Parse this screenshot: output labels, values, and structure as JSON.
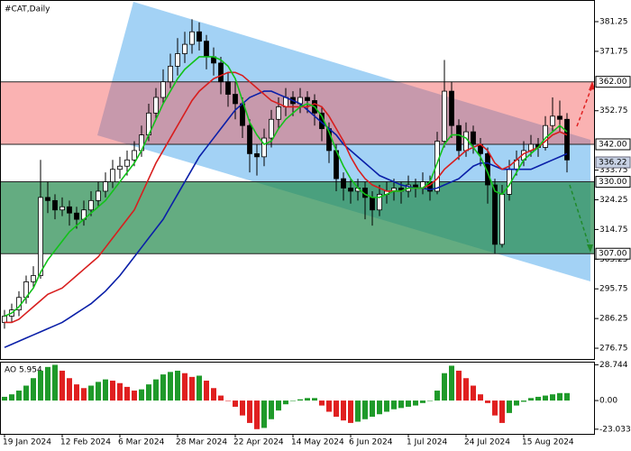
{
  "chart_data": {
    "type": "candlestick",
    "title": "#CAT,Daily",
    "categories": [
      "19 Jan 2024",
      null,
      null,
      null,
      null,
      null,
      null,
      null,
      "12 Feb 2024",
      null,
      null,
      null,
      null,
      null,
      null,
      null,
      "6 Mar 2024",
      null,
      null,
      null,
      null,
      null,
      null,
      null,
      "28 Mar 2024",
      null,
      null,
      null,
      null,
      null,
      null,
      null,
      "22 Apr 2024",
      null,
      null,
      null,
      null,
      null,
      null,
      null,
      "14 May 2024",
      null,
      null,
      null,
      null,
      null,
      null,
      null,
      "6 Jun 2024",
      null,
      null,
      null,
      null,
      null,
      null,
      null,
      "1 Jul 2024",
      null,
      null,
      null,
      null,
      null,
      null,
      null,
      "24 Jul 2024",
      null,
      null,
      null,
      null,
      null,
      null,
      null,
      "15 Aug 2024",
      null,
      null,
      null,
      null,
      null,
      null
    ],
    "ohlc": [
      [
        285,
        289,
        283,
        287
      ],
      [
        287,
        291,
        285,
        289
      ],
      [
        289,
        295,
        287,
        293
      ],
      [
        293,
        300,
        291,
        298
      ],
      [
        298,
        303,
        296,
        300
      ],
      [
        300,
        337,
        299,
        325
      ],
      [
        325,
        330,
        320,
        324
      ],
      [
        324,
        326,
        318,
        321
      ],
      [
        321,
        325,
        319,
        322
      ],
      [
        322,
        324,
        316,
        320
      ],
      [
        320,
        322,
        315,
        318
      ],
      [
        318,
        324,
        316,
        321
      ],
      [
        321,
        327,
        319,
        324
      ],
      [
        324,
        330,
        322,
        327
      ],
      [
        327,
        333,
        325,
        330
      ],
      [
        330,
        337,
        328,
        334
      ],
      [
        334,
        338,
        331,
        335
      ],
      [
        335,
        340,
        332,
        337
      ],
      [
        337,
        343,
        335,
        340
      ],
      [
        340,
        348,
        338,
        345
      ],
      [
        345,
        355,
        343,
        352
      ],
      [
        352,
        360,
        350,
        357
      ],
      [
        357,
        366,
        355,
        362
      ],
      [
        362,
        371,
        360,
        367
      ],
      [
        367,
        376,
        364,
        371
      ],
      [
        371,
        378,
        368,
        374
      ],
      [
        374,
        382,
        371,
        378
      ],
      [
        378,
        381,
        372,
        375
      ],
      [
        375,
        377,
        366,
        370
      ],
      [
        370,
        373,
        364,
        368
      ],
      [
        368,
        370,
        358,
        362
      ],
      [
        362,
        365,
        354,
        358
      ],
      [
        358,
        362,
        350,
        355
      ],
      [
        355,
        357,
        344,
        348
      ],
      [
        348,
        350,
        333,
        339
      ],
      [
        339,
        342,
        332,
        338
      ],
      [
        338,
        347,
        335,
        344
      ],
      [
        344,
        353,
        341,
        350
      ],
      [
        350,
        357,
        347,
        354
      ],
      [
        354,
        360,
        351,
        357
      ],
      [
        357,
        359,
        351,
        355
      ],
      [
        355,
        360,
        352,
        357
      ],
      [
        357,
        359,
        352,
        356
      ],
      [
        356,
        358,
        348,
        352
      ],
      [
        352,
        354,
        343,
        347
      ],
      [
        347,
        349,
        336,
        340
      ],
      [
        340,
        342,
        327,
        331
      ],
      [
        331,
        333,
        324,
        328
      ],
      [
        328,
        331,
        323,
        327
      ],
      [
        327,
        331,
        324,
        328
      ],
      [
        328,
        330,
        318,
        325
      ],
      [
        325,
        327,
        316,
        321
      ],
      [
        321,
        329,
        319,
        326
      ],
      [
        326,
        330,
        323,
        327
      ],
      [
        327,
        331,
        324,
        328
      ],
      [
        328,
        330,
        323,
        327
      ],
      [
        327,
        332,
        325,
        329
      ],
      [
        329,
        331,
        325,
        328
      ],
      [
        328,
        333,
        326,
        330
      ],
      [
        330,
        332,
        324,
        327
      ],
      [
        327,
        346,
        326,
        343
      ],
      [
        343,
        369,
        341,
        359
      ],
      [
        359,
        362,
        344,
        348
      ],
      [
        348,
        350,
        337,
        340
      ],
      [
        340,
        349,
        338,
        346
      ],
      [
        346,
        348,
        339,
        342
      ],
      [
        342,
        344,
        335,
        339
      ],
      [
        339,
        341,
        323,
        329
      ],
      [
        329,
        331,
        307,
        310
      ],
      [
        310,
        329,
        309,
        326
      ],
      [
        326,
        337,
        324,
        334
      ],
      [
        334,
        340,
        332,
        337
      ],
      [
        337,
        343,
        335,
        340
      ],
      [
        340,
        345,
        338,
        342
      ],
      [
        342,
        344,
        338,
        341
      ],
      [
        341,
        351,
        340,
        348
      ],
      [
        348,
        357,
        346,
        351
      ],
      [
        351,
        356,
        346,
        350
      ],
      [
        350,
        352,
        333,
        337
      ]
    ],
    "up_color": "#ffffff",
    "down_color": "#000000",
    "series": [
      {
        "color": "#0a1fa8",
        "values": [
          277,
          278,
          279,
          280,
          281,
          282,
          283,
          284,
          285,
          286.5,
          288,
          289.5,
          291,
          293,
          295,
          297.5,
          300,
          303,
          306,
          309,
          312,
          315,
          318,
          322,
          326,
          330,
          334,
          338,
          341,
          344,
          347,
          350,
          353,
          355,
          357,
          358,
          359,
          359,
          358,
          357,
          356,
          355,
          353,
          351,
          349,
          347,
          345,
          342,
          340,
          338,
          336,
          334,
          332,
          331,
          330,
          329,
          328.5,
          328,
          328,
          327.5,
          328,
          329,
          330,
          331,
          333,
          335,
          336,
          336,
          335,
          334,
          334,
          334,
          334,
          334,
          335,
          336,
          337,
          338,
          339
        ]
      },
      {
        "color": "#d81e1e",
        "values": [
          285,
          285,
          286,
          288,
          290,
          292,
          294,
          295,
          296,
          298,
          300,
          302,
          304,
          306,
          309,
          312,
          315,
          318,
          321,
          326,
          331,
          336,
          340,
          344,
          348,
          352,
          356,
          359,
          361,
          363,
          364,
          365,
          365,
          364,
          362,
          360,
          358,
          356,
          355,
          354,
          354,
          354,
          354,
          355,
          354,
          351,
          347,
          343,
          338,
          334,
          331,
          329,
          328,
          327,
          327,
          327,
          328,
          328,
          328,
          329,
          331,
          334,
          336,
          338,
          340,
          341,
          342,
          340,
          336,
          334,
          335,
          337,
          339,
          340,
          341,
          343,
          345,
          346,
          345
        ]
      },
      {
        "color": "#12c21a",
        "values": [
          287,
          288,
          290,
          293,
          296,
          301,
          305,
          308,
          311,
          314,
          316,
          318,
          320,
          322,
          324,
          327,
          330,
          333,
          336,
          340,
          345,
          350,
          355,
          359,
          363,
          366,
          368,
          370,
          370,
          370,
          369,
          367,
          363,
          356,
          349,
          345,
          342,
          343,
          347,
          350,
          352,
          354,
          355,
          354,
          351,
          346,
          340,
          335,
          331,
          328,
          326,
          325,
          325,
          326,
          327,
          327,
          328,
          328,
          328,
          330,
          336,
          342,
          345,
          345,
          344,
          341,
          338,
          333,
          327,
          326,
          329,
          333,
          337,
          339,
          341,
          344,
          346,
          348,
          346
        ]
      }
    ],
    "ylim": [
      273.3,
      387.6
    ],
    "yticks": [
      381.25,
      371.75,
      352.75,
      333.75,
      324.25,
      314.75,
      305.25,
      295.75,
      286.25,
      276.75
    ],
    "zones": [
      {
        "top": {
          "value": 362,
          "label": "362.00"
        },
        "bottom": {
          "value": 342,
          "label": "342.00"
        },
        "color": "rgba(245,85,85,0.45)"
      },
      {
        "top": {
          "value": 330,
          "label": "330.00"
        },
        "bottom": {
          "value": 307,
          "label": "307.00"
        },
        "color": "rgba(40,140,80,0.72)"
      }
    ],
    "last_price": {
      "value": 336.22,
      "label": "336.22"
    },
    "ao": {
      "title": "AO 5.954",
      "values": [
        3,
        5,
        8,
        12,
        18,
        24,
        27,
        28.7,
        24,
        18,
        13,
        10,
        12,
        15,
        17,
        16,
        14,
        11,
        8,
        9,
        13,
        17,
        21,
        23,
        24,
        22,
        19,
        20,
        16,
        10,
        4,
        0,
        -5,
        -12,
        -18,
        -23,
        -22,
        -15,
        -8,
        -3,
        0,
        1,
        2,
        2,
        -4,
        -9,
        -13,
        -16,
        -18,
        -17,
        -15,
        -13,
        -11,
        -9,
        -7,
        -6,
        -5,
        -4,
        -2,
        0,
        8,
        22,
        28,
        24,
        18,
        12,
        5,
        -2,
        -12,
        -18,
        -10,
        -4,
        -1,
        2,
        3,
        4,
        5,
        6,
        6
      ],
      "up_color": "#1f9a2a",
      "down_color": "#e02020",
      "ylim": [
        -27.5,
        30.5
      ],
      "yticks": [
        28.744,
        {
          "value": 0,
          "label": "0.00"
        },
        -23.033
      ]
    }
  }
}
